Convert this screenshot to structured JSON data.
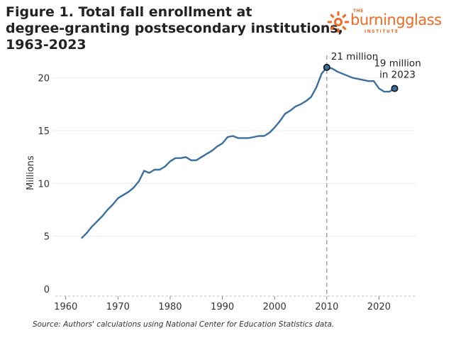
{
  "title_lines": [
    "Figure 1. Total fall enrollment at",
    "degree-granting postsecondary institutions,",
    "1963-2023"
  ],
  "logo": {
    "small": "THE",
    "main": "burningglass",
    "sub": "INSTITUTE",
    "color": "#f26a21"
  },
  "source": "Source: Authors' calculations using National Center for Education Statistics data.",
  "chart_data": {
    "type": "line",
    "title": "Figure 1. Total fall enrollment at degree-granting postsecondary institutions, 1963-2023",
    "xlabel": "",
    "ylabel": "Millions",
    "xlim": [
      1958,
      2027
    ],
    "ylim": [
      0,
      22
    ],
    "xticks": [
      1960,
      1970,
      1980,
      1990,
      2000,
      2010,
      2020
    ],
    "yticks": [
      0,
      5,
      10,
      15,
      20
    ],
    "grid": true,
    "line_color": "#3a6f9f",
    "series": [
      {
        "x": [
          1963,
          1964,
          1965,
          1966,
          1967,
          1968,
          1969,
          1970,
          1971,
          1972,
          1973,
          1974,
          1975,
          1976,
          1977,
          1978,
          1979,
          1980,
          1981,
          1982,
          1983,
          1984,
          1985,
          1986,
          1987,
          1988,
          1989,
          1990,
          1991,
          1992,
          1993,
          1994,
          1995,
          1996,
          1997,
          1998,
          1999,
          2000,
          2001,
          2002,
          2003,
          2004,
          2005,
          2006,
          2007,
          2008,
          2009,
          2010,
          2011,
          2012,
          2013,
          2014,
          2015,
          2016,
          2017,
          2018,
          2019,
          2020,
          2021,
          2022,
          2023
        ],
        "values": [
          4.8,
          5.3,
          5.9,
          6.4,
          6.9,
          7.5,
          8.0,
          8.6,
          8.9,
          9.2,
          9.6,
          10.2,
          11.2,
          11.0,
          11.3,
          11.3,
          11.6,
          12.1,
          12.4,
          12.4,
          12.5,
          12.2,
          12.2,
          12.5,
          12.8,
          13.1,
          13.5,
          13.8,
          14.4,
          14.5,
          14.3,
          14.3,
          14.3,
          14.4,
          14.5,
          14.5,
          14.8,
          15.3,
          15.9,
          16.6,
          16.9,
          17.3,
          17.5,
          17.8,
          18.2,
          19.1,
          20.4,
          21.0,
          20.9,
          20.6,
          20.4,
          20.2,
          20.0,
          19.9,
          19.8,
          19.7,
          19.7,
          19.0,
          18.7,
          18.7,
          19.0
        ]
      }
    ],
    "annotations": [
      {
        "label": "21 million",
        "x": 2010,
        "y": 21.0
      },
      {
        "label_lines": [
          "19 million",
          "in 2023"
        ],
        "x": 2023,
        "y": 19.0
      }
    ],
    "vline": 2010
  }
}
